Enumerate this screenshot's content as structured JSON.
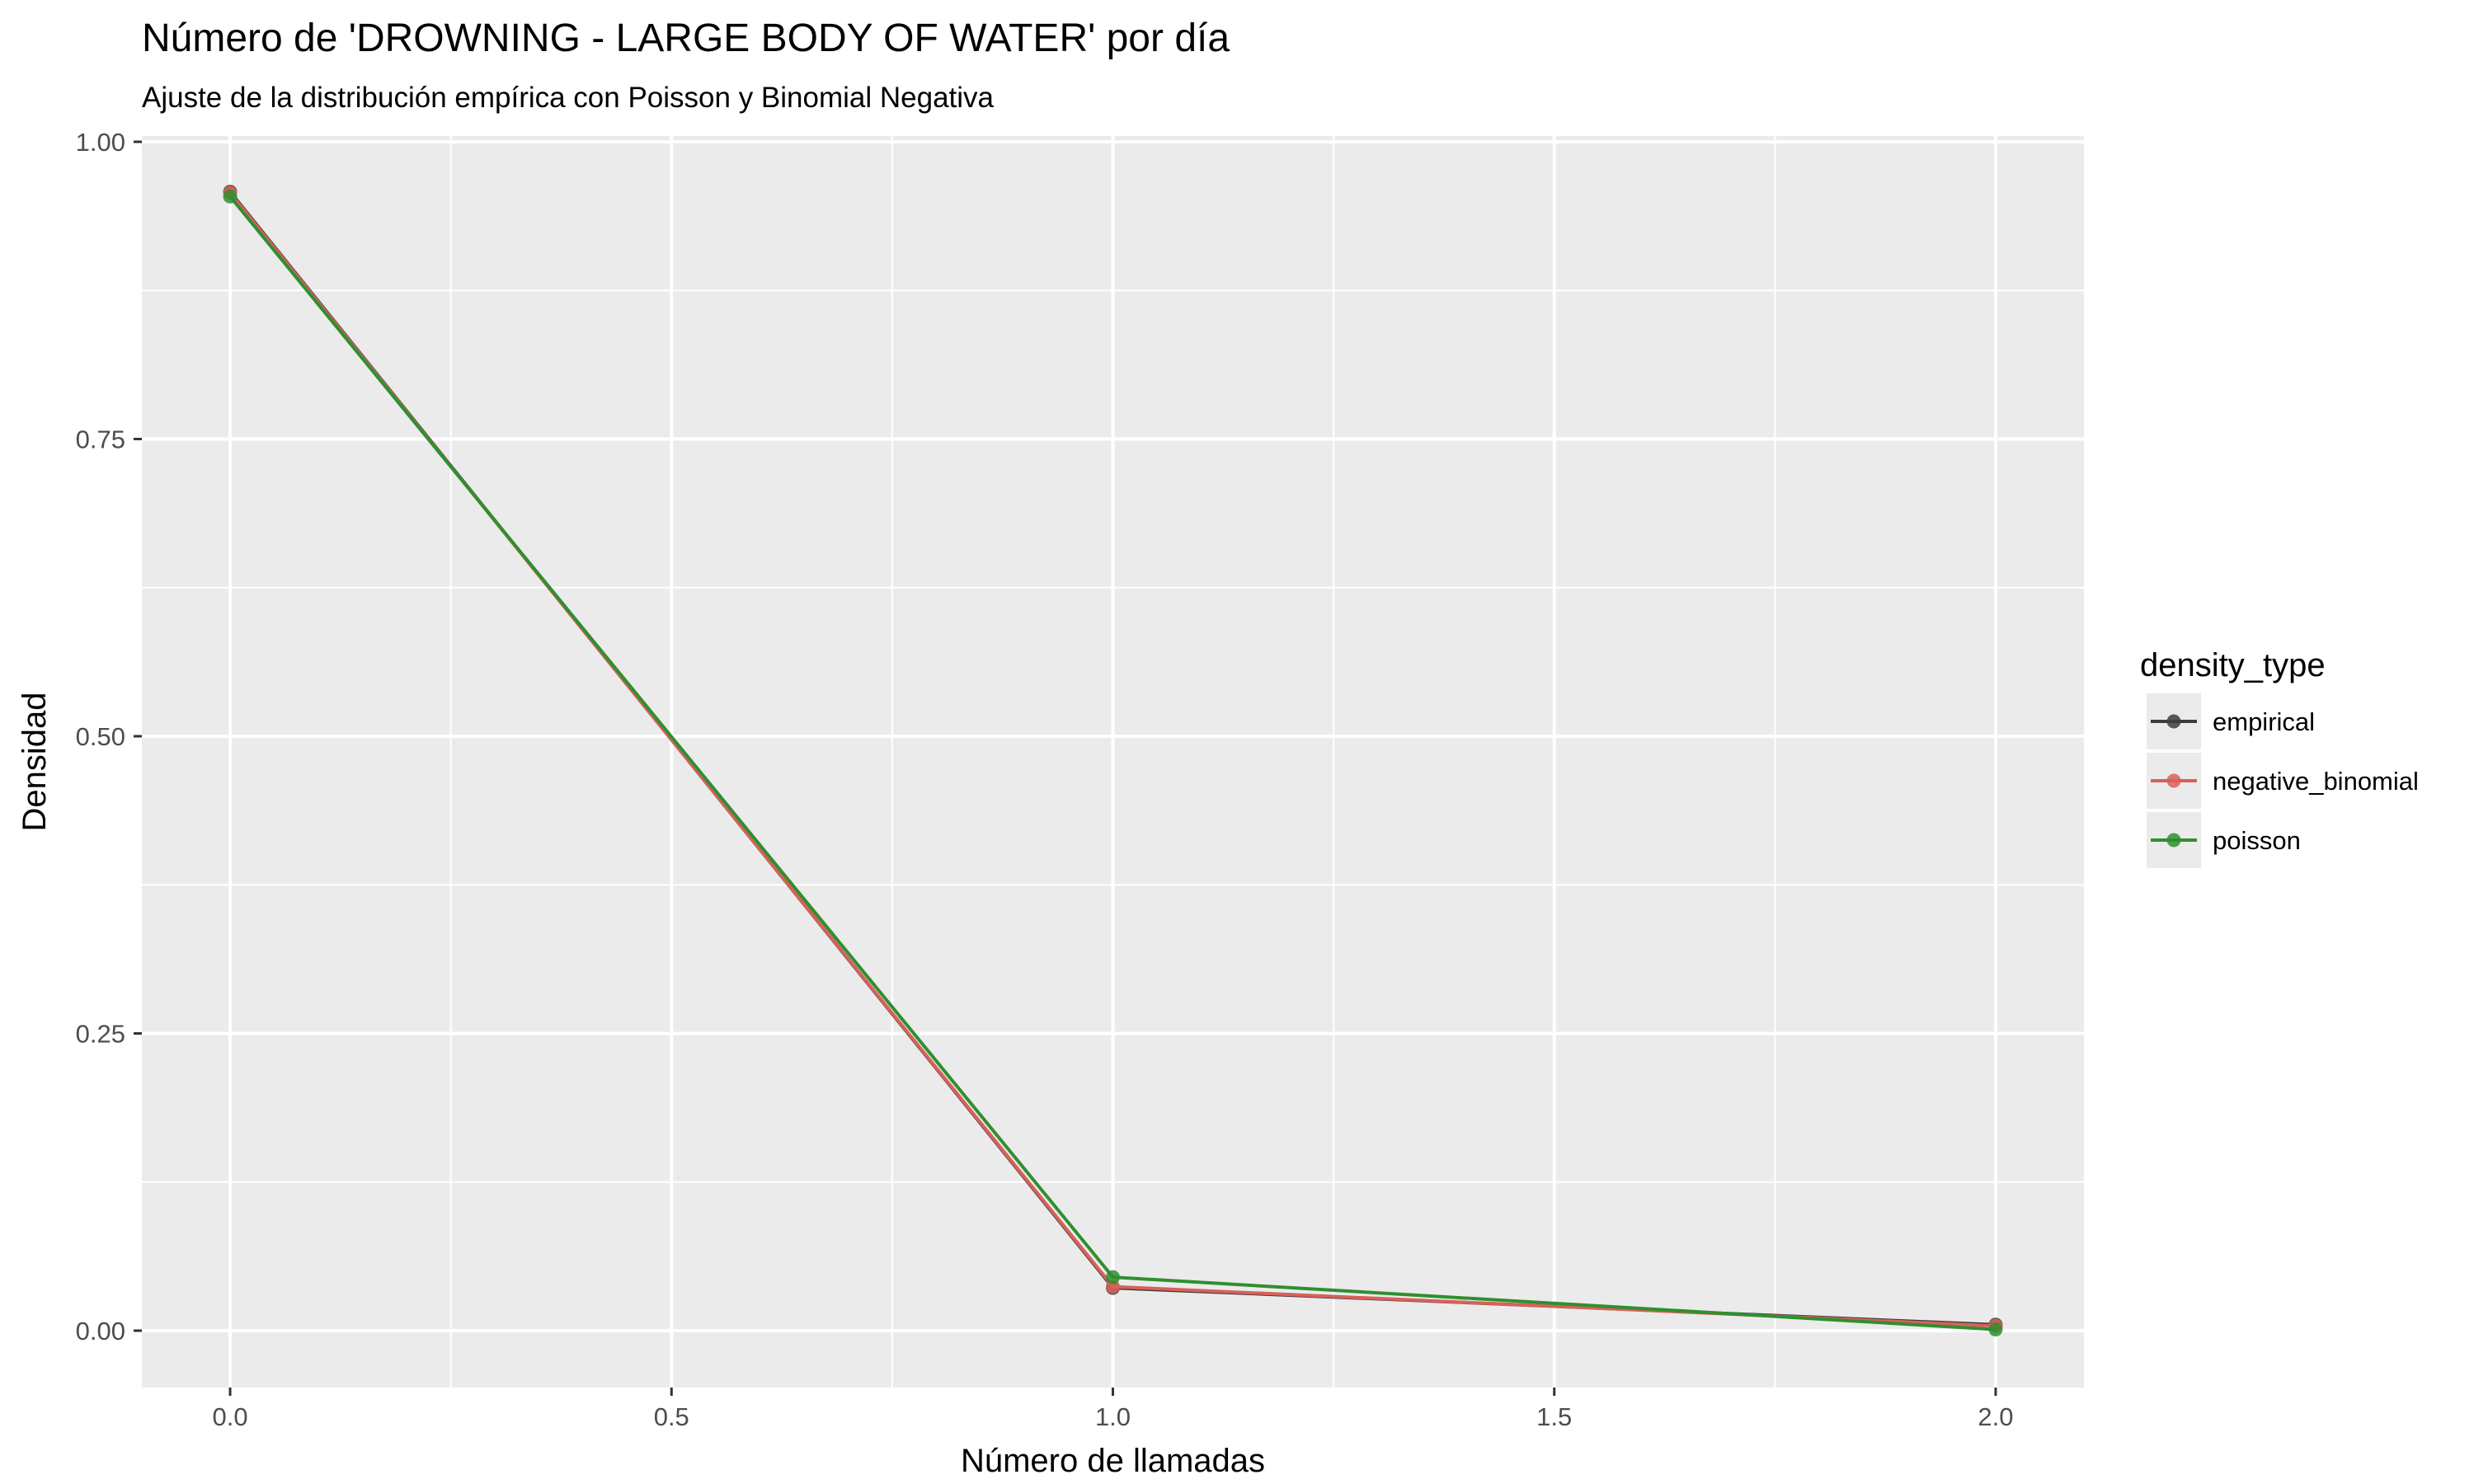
{
  "chart_data": {
    "type": "line",
    "title": "Número de 'DROWNING - LARGE BODY OF WATER' por día",
    "subtitle": "Ajuste de la distribución empírica con Poisson y Binomial Negativa",
    "xlabel": "Número de llamadas",
    "ylabel": "Densidad",
    "xlim": [
      -0.1,
      2.1
    ],
    "ylim": [
      -0.05,
      1.0
    ],
    "x_ticks": [
      0.0,
      0.5,
      1.0,
      1.5,
      2.0
    ],
    "x_tick_labels": [
      "0.0",
      "0.5",
      "1.0",
      "1.5",
      "2.0"
    ],
    "y_ticks": [
      0.0,
      0.25,
      0.5,
      0.75,
      1.0
    ],
    "y_tick_labels": [
      "0.00",
      "0.25",
      "0.50",
      "0.75",
      "1.00"
    ],
    "grid": true,
    "legend": {
      "title": "density_type",
      "position": "right"
    },
    "series": [
      {
        "name": "empirical",
        "color": "#3d3d3d",
        "x": [
          0,
          1,
          2
        ],
        "y": [
          0.958,
          0.036,
          0.005
        ]
      },
      {
        "name": "negative_binomial",
        "color": "#d9605a",
        "x": [
          0,
          1,
          2
        ],
        "y": [
          0.957,
          0.037,
          0.004
        ]
      },
      {
        "name": "poisson",
        "color": "#2f8f2f",
        "x": [
          0,
          1,
          2
        ],
        "y": [
          0.954,
          0.045,
          0.001
        ]
      }
    ]
  }
}
